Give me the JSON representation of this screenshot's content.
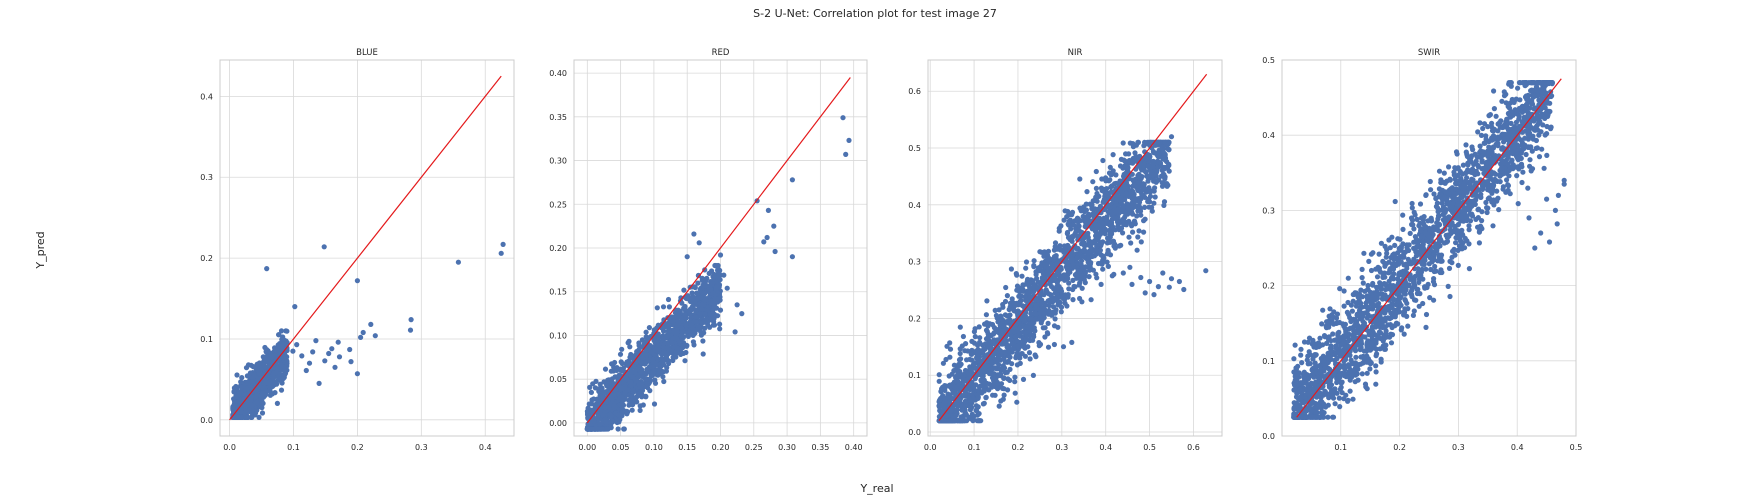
{
  "figure": {
    "title": "S-2 U-Net: Correlation plot for test image 27",
    "xlabel": "Y_real",
    "ylabel": "Y_pred"
  },
  "colors": {
    "points": "#4c72b0",
    "line": "#e41a1c",
    "grid": "#d9d9d9",
    "axis": "#cccccc"
  },
  "chart_data": [
    {
      "type": "scatter",
      "title": "BLUE",
      "xlim": [
        -0.015,
        0.445
      ],
      "ylim": [
        -0.02,
        0.445
      ],
      "xticks": [
        0.0,
        0.1,
        0.2,
        0.3,
        0.4
      ],
      "xtick_labels": [
        "0.0",
        "0.1",
        "0.2",
        "0.3",
        "0.4"
      ],
      "yticks": [
        0.0,
        0.1,
        0.2,
        0.3,
        0.4
      ],
      "ytick_labels": [
        "0.0",
        "0.1",
        "0.2",
        "0.3",
        "0.4"
      ],
      "identity_line": [
        0.0,
        0.425
      ],
      "cloud": {
        "x_range": [
          0.005,
          0.09
        ],
        "y_range": [
          0.003,
          0.11
        ],
        "slope": 0.95,
        "spread": 0.014,
        "n": 900
      },
      "points": [
        [
          0.058,
          0.187
        ],
        [
          0.148,
          0.214
        ],
        [
          0.102,
          0.14
        ],
        [
          0.2,
          0.172
        ],
        [
          0.358,
          0.195
        ],
        [
          0.425,
          0.206
        ],
        [
          0.428,
          0.217
        ],
        [
          0.284,
          0.124
        ],
        [
          0.283,
          0.111
        ],
        [
          0.228,
          0.104
        ],
        [
          0.221,
          0.118
        ],
        [
          0.205,
          0.102
        ],
        [
          0.17,
          0.096
        ],
        [
          0.16,
          0.088
        ],
        [
          0.149,
          0.073
        ],
        [
          0.13,
          0.084
        ],
        [
          0.12,
          0.061
        ],
        [
          0.188,
          0.087
        ],
        [
          0.172,
          0.078
        ],
        [
          0.14,
          0.045
        ],
        [
          0.155,
          0.082
        ],
        [
          0.113,
          0.079
        ],
        [
          0.105,
          0.093
        ],
        [
          0.125,
          0.07
        ],
        [
          0.2,
          0.057
        ],
        [
          0.19,
          0.072
        ],
        [
          0.099,
          0.085
        ],
        [
          0.209,
          0.108
        ],
        [
          0.165,
          0.065
        ],
        [
          0.135,
          0.098
        ]
      ]
    },
    {
      "type": "scatter",
      "title": "RED",
      "xlim": [
        -0.02,
        0.42
      ],
      "ylim": [
        -0.015,
        0.415
      ],
      "xticks": [
        0.0,
        0.05,
        0.1,
        0.15,
        0.2,
        0.25,
        0.3,
        0.35,
        0.4
      ],
      "xtick_labels": [
        "0.00",
        "0.05",
        "0.10",
        "0.15",
        "0.20",
        "0.25",
        "0.30",
        "0.35",
        "0.40"
      ],
      "yticks": [
        0.0,
        0.05,
        0.1,
        0.15,
        0.2,
        0.25,
        0.3,
        0.35,
        0.4
      ],
      "ytick_labels": [
        "0.00",
        "0.05",
        "0.10",
        "0.15",
        "0.20",
        "0.25",
        "0.30",
        "0.35",
        "0.40"
      ],
      "identity_line": [
        0.0,
        0.395
      ],
      "cloud": {
        "x_range": [
          0.0,
          0.2
        ],
        "y_range": [
          -0.007,
          0.18
        ],
        "slope": 0.82,
        "spread": 0.018,
        "n": 1400
      },
      "points": [
        [
          0.384,
          0.349
        ],
        [
          0.393,
          0.323
        ],
        [
          0.388,
          0.307
        ],
        [
          0.255,
          0.254
        ],
        [
          0.308,
          0.278
        ],
        [
          0.272,
          0.243
        ],
        [
          0.28,
          0.225
        ],
        [
          0.27,
          0.212
        ],
        [
          0.265,
          0.207
        ],
        [
          0.282,
          0.196
        ],
        [
          0.308,
          0.19
        ],
        [
          0.168,
          0.206
        ],
        [
          0.16,
          0.216
        ],
        [
          0.2,
          0.192
        ],
        [
          0.232,
          0.125
        ],
        [
          0.222,
          0.104
        ],
        [
          0.225,
          0.135
        ],
        [
          0.205,
          0.169
        ],
        [
          0.21,
          0.154
        ],
        [
          0.15,
          0.19
        ]
      ]
    },
    {
      "type": "scatter",
      "title": "NIR",
      "xlim": [
        -0.005,
        0.665
      ],
      "ylim": [
        -0.007,
        0.655
      ],
      "xticks": [
        0.0,
        0.1,
        0.2,
        0.3,
        0.4,
        0.5,
        0.6
      ],
      "xtick_labels": [
        "0.0",
        "0.1",
        "0.2",
        "0.3",
        "0.4",
        "0.5",
        "0.6"
      ],
      "yticks": [
        0.0,
        0.1,
        0.2,
        0.3,
        0.4,
        0.5,
        0.6
      ],
      "ytick_labels": [
        "0.0",
        "0.1",
        "0.2",
        "0.3",
        "0.4",
        "0.5",
        "0.6"
      ],
      "identity_line": [
        0.02,
        0.63
      ],
      "cloud": {
        "x_range": [
          0.02,
          0.545
        ],
        "y_range": [
          0.02,
          0.51
        ],
        "slope": 0.93,
        "spread": 0.04,
        "n": 2200
      },
      "points": [
        [
          0.628,
          0.284
        ],
        [
          0.578,
          0.251
        ],
        [
          0.568,
          0.265
        ],
        [
          0.55,
          0.27
        ],
        [
          0.52,
          0.256
        ],
        [
          0.5,
          0.265
        ],
        [
          0.48,
          0.272
        ],
        [
          0.46,
          0.26
        ],
        [
          0.44,
          0.28
        ],
        [
          0.455,
          0.29
        ],
        [
          0.49,
          0.245
        ],
        [
          0.545,
          0.255
        ],
        [
          0.53,
          0.28
        ],
        [
          0.51,
          0.242
        ],
        [
          0.415,
          0.275
        ],
        [
          0.55,
          0.52
        ],
        [
          0.54,
          0.505
        ],
        [
          0.47,
          0.505
        ]
      ]
    },
    {
      "type": "scatter",
      "title": "SWIR",
      "xlim": [
        0.0,
        0.5
      ],
      "ylim": [
        -0.0,
        0.5
      ],
      "xticks": [
        0.1,
        0.2,
        0.3,
        0.4,
        0.5
      ],
      "xtick_labels": [
        "0.1",
        "0.2",
        "0.3",
        "0.4",
        "0.5"
      ],
      "yticks": [
        0.0,
        0.1,
        0.2,
        0.3,
        0.4,
        0.5
      ],
      "ytick_labels": [
        "0.0",
        "0.1",
        "0.2",
        "0.3",
        "0.4",
        "0.5"
      ],
      "identity_line": [
        0.025,
        0.475
      ],
      "cloud": {
        "x_range": [
          0.02,
          0.46
        ],
        "y_range": [
          0.025,
          0.47
        ],
        "slope": 1.0,
        "spread": 0.035,
        "n": 2200
      },
      "points": [
        [
          0.48,
          0.34
        ],
        [
          0.48,
          0.335
        ],
        [
          0.47,
          0.32
        ],
        [
          0.465,
          0.3
        ],
        [
          0.468,
          0.282
        ],
        [
          0.455,
          0.258
        ],
        [
          0.45,
          0.315
        ],
        [
          0.44,
          0.27
        ],
        [
          0.43,
          0.25
        ],
        [
          0.42,
          0.29
        ],
        [
          0.405,
          0.47
        ],
        [
          0.39,
          0.465
        ]
      ]
    }
  ]
}
